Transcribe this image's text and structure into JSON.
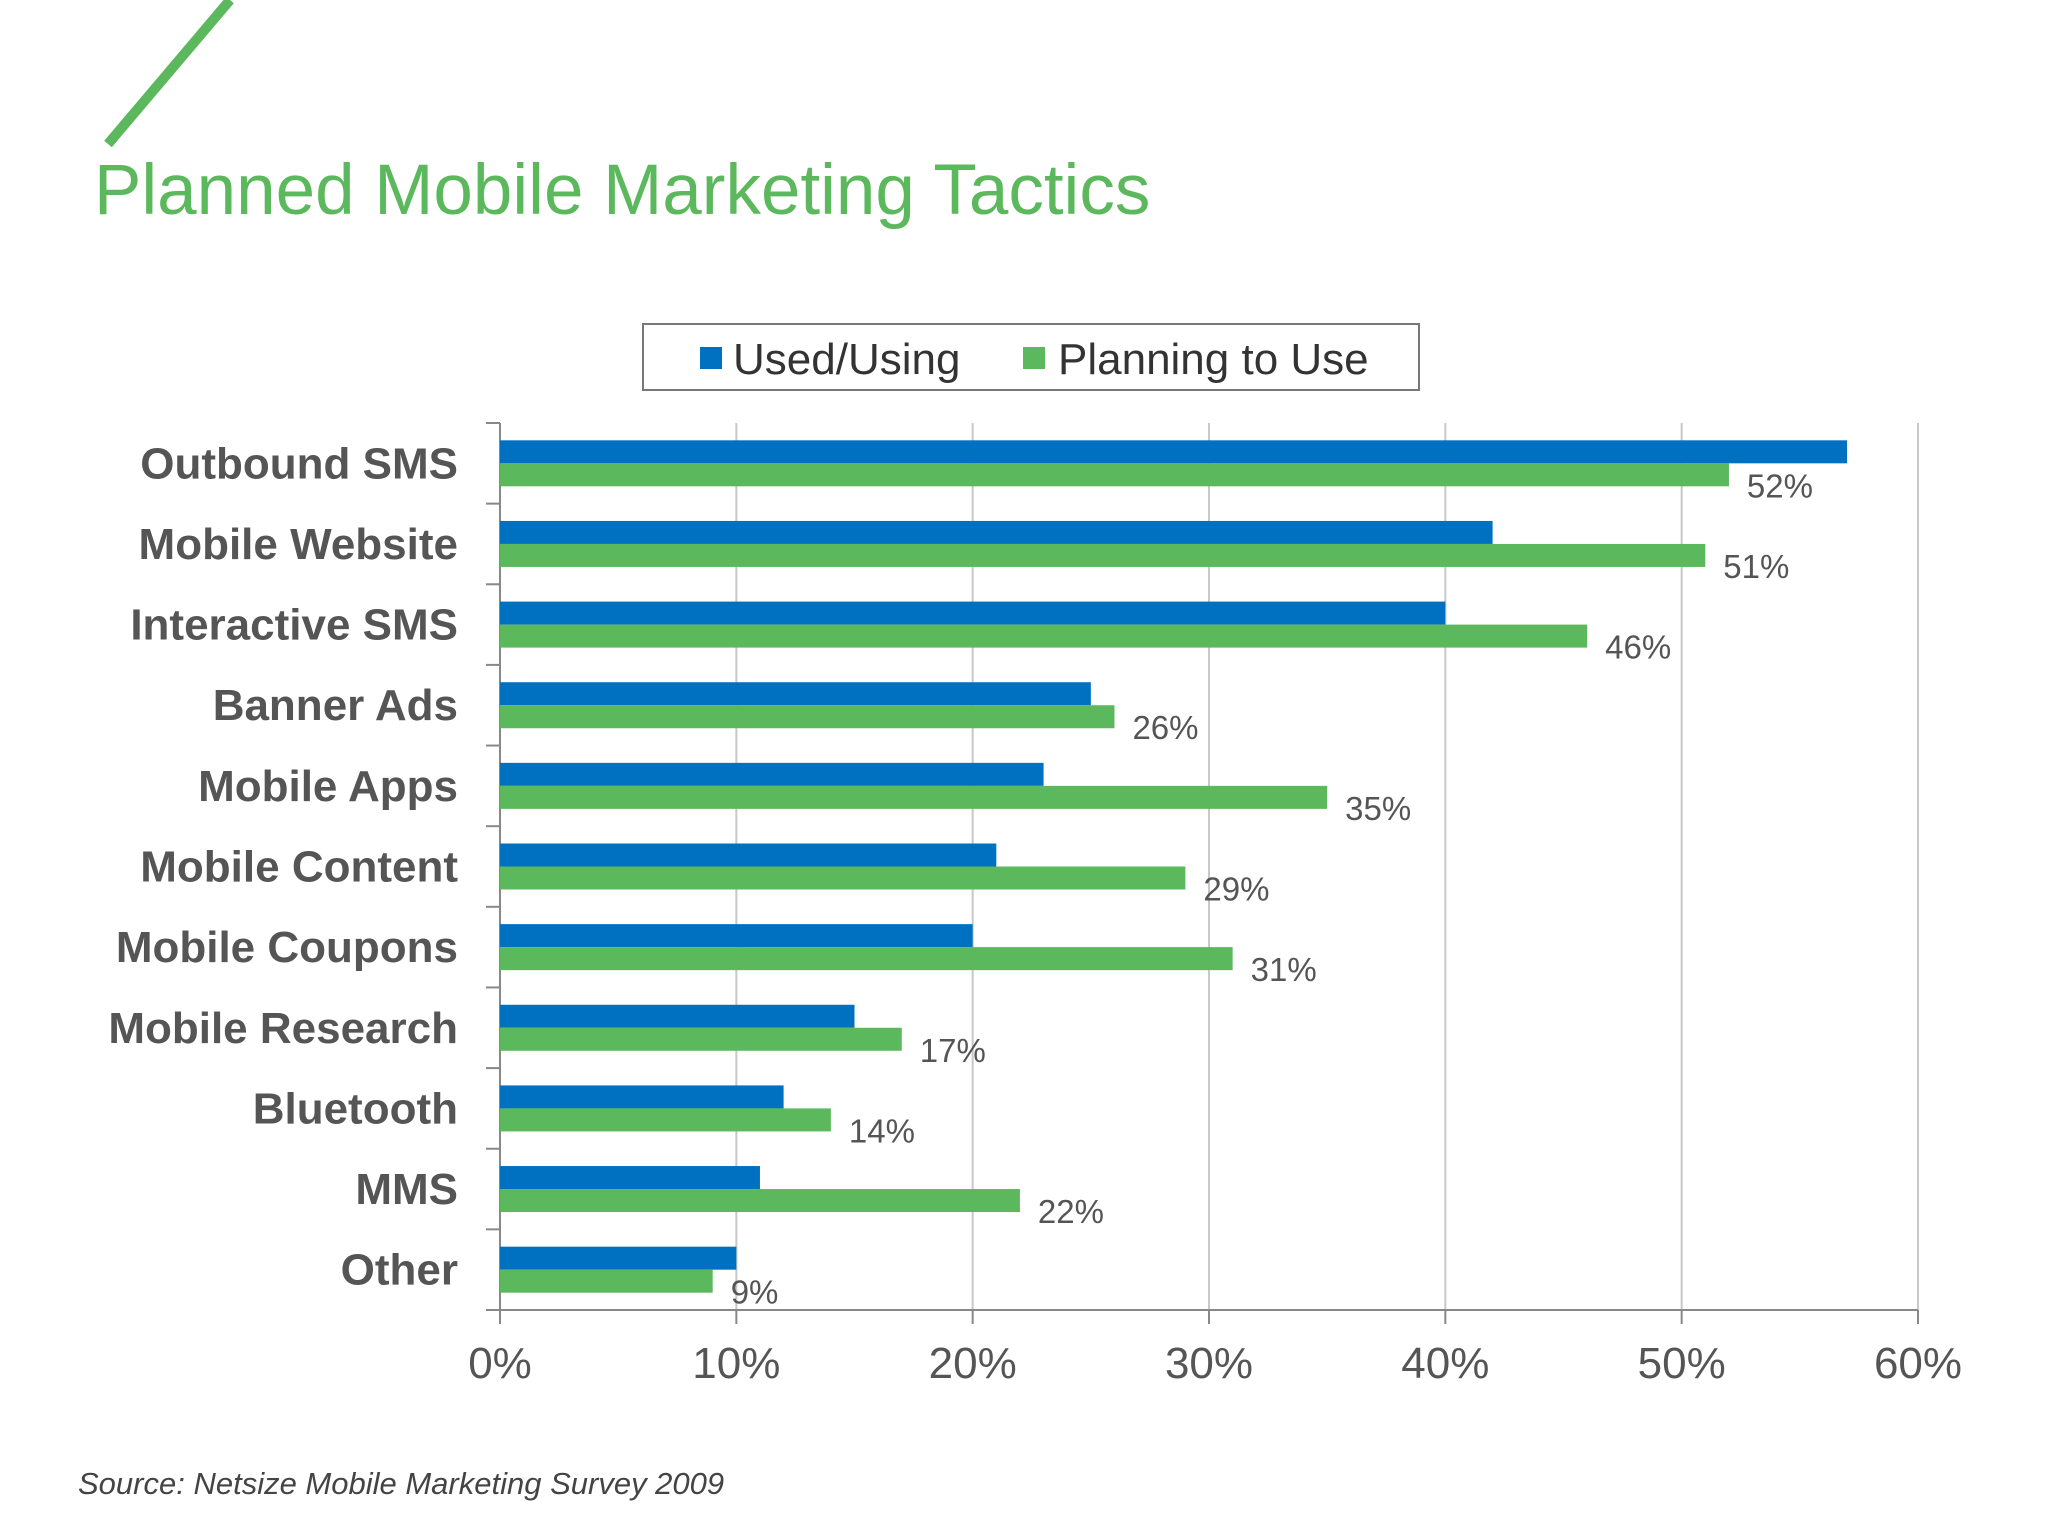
{
  "slide": {
    "title": "Planned Mobile Marketing Tactics",
    "source": "Source: Netsize Mobile Marketing Survey 2009",
    "accent_color": "#5cb85c"
  },
  "chart_data": {
    "type": "bar",
    "orientation": "horizontal",
    "categories": [
      "Outbound SMS",
      "Mobile Website",
      "Interactive SMS",
      "Banner Ads",
      "Mobile Apps",
      "Mobile Content",
      "Mobile Coupons",
      "Mobile Research",
      "Bluetooth",
      "MMS",
      "Other"
    ],
    "series": [
      {
        "name": "Used/Using",
        "color": "#0070c0",
        "values": [
          57,
          42,
          40,
          25,
          23,
          21,
          20,
          15,
          12,
          11,
          10
        ]
      },
      {
        "name": "Planning to Use",
        "color": "#5cb85c",
        "values": [
          52,
          51,
          46,
          26,
          35,
          29,
          31,
          17,
          14,
          22,
          9
        ]
      }
    ],
    "data_labels": [
      "52%",
      "51%",
      "46%",
      "26%",
      "35%",
      "29%",
      "31%",
      "17%",
      "14%",
      "22%",
      "9%"
    ],
    "xlim": [
      0,
      60
    ],
    "xticks": [
      "0%",
      "10%",
      "20%",
      "30%",
      "40%",
      "50%",
      "60%"
    ],
    "grid": true,
    "legend_position": "top-center"
  }
}
